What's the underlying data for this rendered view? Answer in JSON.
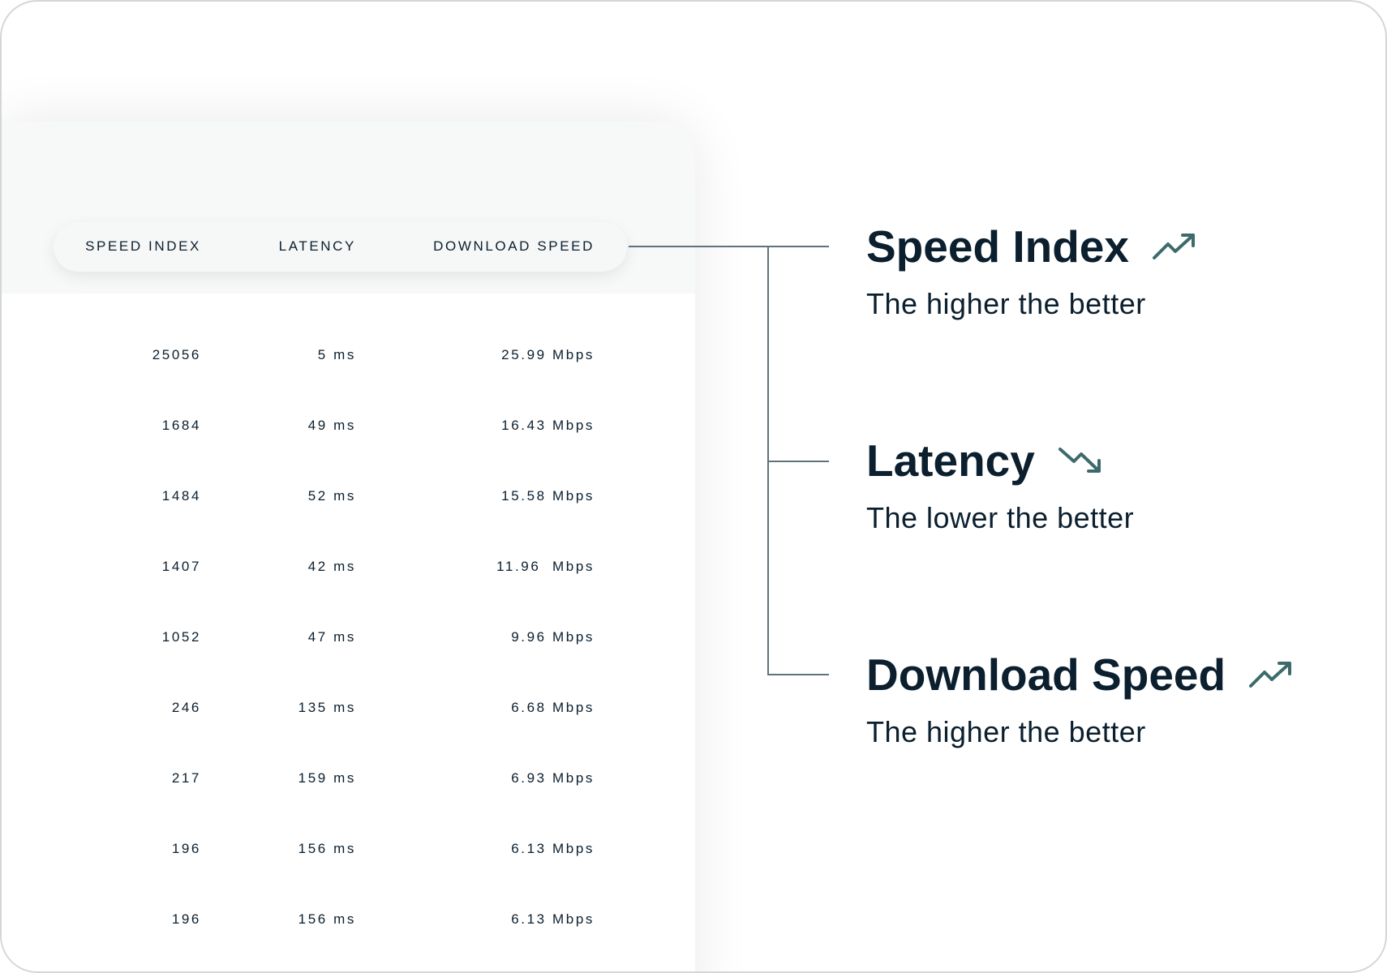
{
  "table": {
    "headers": [
      "SPEED INDEX",
      "LATENCY",
      "DOWNLOAD SPEED"
    ],
    "rows": [
      [
        "25056",
        "5 ms",
        "25.99 Mbps"
      ],
      [
        "1684",
        "49 ms",
        "16.43 Mbps"
      ],
      [
        "1484",
        "52 ms",
        "15.58 Mbps"
      ],
      [
        "1407",
        "42 ms",
        "11.96  Mbps"
      ],
      [
        "1052",
        "47 ms",
        "9.96 Mbps"
      ],
      [
        "246",
        "135 ms",
        "6.68 Mbps"
      ],
      [
        "217",
        "159 ms",
        "6.93 Mbps"
      ],
      [
        "196",
        "156 ms",
        "6.13 Mbps"
      ],
      [
        "196",
        "156 ms",
        "6.13 Mbps"
      ]
    ]
  },
  "legend": [
    {
      "title": "Speed Index",
      "subtitle": "The higher the better",
      "icon": "trending-up-icon"
    },
    {
      "title": "Latency",
      "subtitle": "The lower the better",
      "icon": "trending-down-icon"
    },
    {
      "title": "Download Speed",
      "subtitle": "The higher the better",
      "icon": "trending-up-icon"
    }
  ],
  "colors": {
    "text": "#0b1f2e",
    "accent": "#3d6b6b",
    "connector": "#5f737b"
  }
}
